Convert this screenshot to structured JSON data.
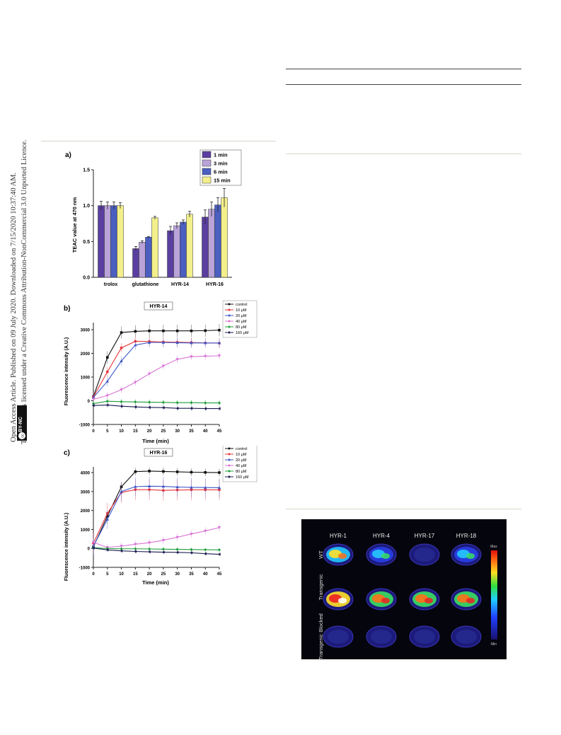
{
  "sidebar": {
    "line1": "Open Access Article. Published on 09 July 2020. Downloaded on 7/15/2020 10:37:40 AM.",
    "line2": "This article is licensed under a Creative Commons Attribution-NonCommercial 3.0 Unported Licence.",
    "badge_cc": "cc",
    "badge_text": "BY-NC"
  },
  "colors": {
    "purple_dark": "#5b3fa0",
    "lilac": "#b9a3d8",
    "blue": "#4a5fc0",
    "yellow": "#f3f08c",
    "control": "#111111",
    "c10": "#e8353b",
    "c20": "#3c57c9",
    "c40": "#d874d6",
    "c80": "#1f9e3a",
    "c160": "#1a1a50"
  },
  "chart_data": [
    {
      "panel": "a)",
      "type": "bar",
      "ylabel": "TEAC value at 470 nm",
      "ylim": [
        0,
        1.5
      ],
      "yticks": [
        "0.0",
        "0.5",
        "1.0",
        "1.5"
      ],
      "categories": [
        "trolox",
        "glutathione",
        "HYR-14",
        "HYR-16"
      ],
      "legend": "top-right",
      "series": [
        {
          "name": "1 min",
          "color": "#5b3fa0",
          "values": [
            1.0,
            0.4,
            0.65,
            0.84
          ],
          "err": [
            0.06,
            0.03,
            0.06,
            0.1
          ]
        },
        {
          "name": "3 min",
          "color": "#b9a3d8",
          "values": [
            1.0,
            0.49,
            0.72,
            0.95
          ],
          "err": [
            0.05,
            0.02,
            0.04,
            0.1
          ]
        },
        {
          "name": "6 min",
          "color": "#4a5fc0",
          "values": [
            1.0,
            0.56,
            0.77,
            1.01
          ],
          "err": [
            0.05,
            0.01,
            0.03,
            0.1
          ]
        },
        {
          "name": "15 min",
          "color": "#f3f08c",
          "values": [
            1.0,
            0.83,
            0.88,
            1.11
          ],
          "err": [
            0.04,
            0.02,
            0.04,
            0.13
          ]
        }
      ]
    },
    {
      "panel": "b)",
      "type": "line",
      "title": "HYR-14",
      "xlabel": "Time (min)",
      "ylabel": "Fluorescence intensity (A.U.)",
      "x": [
        0,
        5,
        10,
        15,
        20,
        25,
        30,
        35,
        40,
        45
      ],
      "xticks": [
        "0",
        "5",
        "10",
        "15",
        "20",
        "25",
        "30",
        "35",
        "40",
        "45"
      ],
      "ylim": [
        -1000,
        3300
      ],
      "yticks": [
        "-1000",
        "0",
        "1000",
        "2000",
        "3000"
      ],
      "legend": "top-right",
      "series": [
        {
          "name": "control",
          "color": "#111111",
          "marker": "square",
          "values": [
            180,
            1830,
            2880,
            2930,
            2950,
            2950,
            2950,
            2950,
            2960,
            2980
          ],
          "err": 260
        },
        {
          "name": "10 μM",
          "color": "#e8353b",
          "marker": "circle",
          "values": [
            160,
            1220,
            2230,
            2510,
            2500,
            2480,
            2470,
            2460,
            2440,
            2430
          ],
          "err": 200
        },
        {
          "name": "20 μM",
          "color": "#3c57c9",
          "marker": "triangle-up",
          "values": [
            140,
            820,
            1680,
            2350,
            2460,
            2460,
            2450,
            2440,
            2440,
            2440
          ],
          "err": 200
        },
        {
          "name": "40 μM",
          "color": "#d874d6",
          "marker": "triangle-down",
          "values": [
            60,
            220,
            470,
            780,
            1140,
            1470,
            1750,
            1860,
            1880,
            1900
          ],
          "err": 150
        },
        {
          "name": "80 μM",
          "color": "#1f9e3a",
          "marker": "diamond",
          "values": [
            -120,
            -20,
            -40,
            -50,
            -60,
            -70,
            -80,
            -80,
            -90,
            -90
          ],
          "err": 120
        },
        {
          "name": "160 μM",
          "color": "#1a1a50",
          "marker": "left",
          "values": [
            -200,
            -180,
            -230,
            -260,
            -280,
            -290,
            -320,
            -320,
            -330,
            -330
          ],
          "err": 100
        }
      ]
    },
    {
      "panel": "c)",
      "type": "line",
      "title": "HYR-16",
      "xlabel": "Time (min)",
      "ylabel": "Fluorescence intensity (A.U.)",
      "x": [
        0,
        5,
        10,
        15,
        20,
        25,
        30,
        35,
        40,
        45
      ],
      "xticks": [
        "0",
        "5",
        "10",
        "15",
        "20",
        "25",
        "30",
        "35",
        "40",
        "45"
      ],
      "ylim": [
        -1000,
        4300
      ],
      "yticks": [
        "-1000",
        "0",
        "1000",
        "2000",
        "3000",
        "4000"
      ],
      "legend": "top-right",
      "series": [
        {
          "name": "control",
          "color": "#111111",
          "marker": "square",
          "values": [
            80,
            1700,
            3250,
            4050,
            4080,
            4060,
            4040,
            4020,
            4010,
            4000
          ],
          "err": 200
        },
        {
          "name": "10 μM",
          "color": "#e8353b",
          "marker": "circle",
          "values": [
            270,
            1850,
            2950,
            3100,
            3100,
            3060,
            3080,
            3090,
            3090,
            3090
          ],
          "err": 550
        },
        {
          "name": "20 μM",
          "color": "#3c57c9",
          "marker": "triangle-up",
          "values": [
            120,
            1530,
            3000,
            3260,
            3280,
            3270,
            3240,
            3220,
            3210,
            3200
          ],
          "err": 500
        },
        {
          "name": "40 μM",
          "color": "#d874d6",
          "marker": "triangle-down",
          "values": [
            320,
            50,
            120,
            220,
            300,
            430,
            590,
            760,
            920,
            1100
          ],
          "err": 200
        },
        {
          "name": "80 μM",
          "color": "#1f9e3a",
          "marker": "diamond",
          "values": [
            40,
            -10,
            -20,
            -20,
            -30,
            -40,
            -50,
            -60,
            -70,
            -80
          ],
          "err": 80
        },
        {
          "name": "160 μM",
          "color": "#1a1a50",
          "marker": "left",
          "values": [
            20,
            -80,
            -130,
            -160,
            -180,
            -200,
            -210,
            -230,
            -280,
            -310
          ],
          "err": 100
        }
      ]
    }
  ],
  "imaging": {
    "columns": [
      "HYR-1",
      "HYR-4",
      "HYR-17",
      "HYR-18"
    ],
    "rows": [
      "WT",
      "Transgenic",
      "Transgenic Blocked"
    ],
    "colorbar_max": "Max",
    "colorbar_min": "Min",
    "intensity": [
      [
        0.7,
        0.25,
        0.1,
        0.3
      ],
      [
        0.95,
        0.85,
        0.75,
        0.85
      ],
      [
        0.05,
        0.05,
        0.05,
        0.05
      ]
    ]
  }
}
